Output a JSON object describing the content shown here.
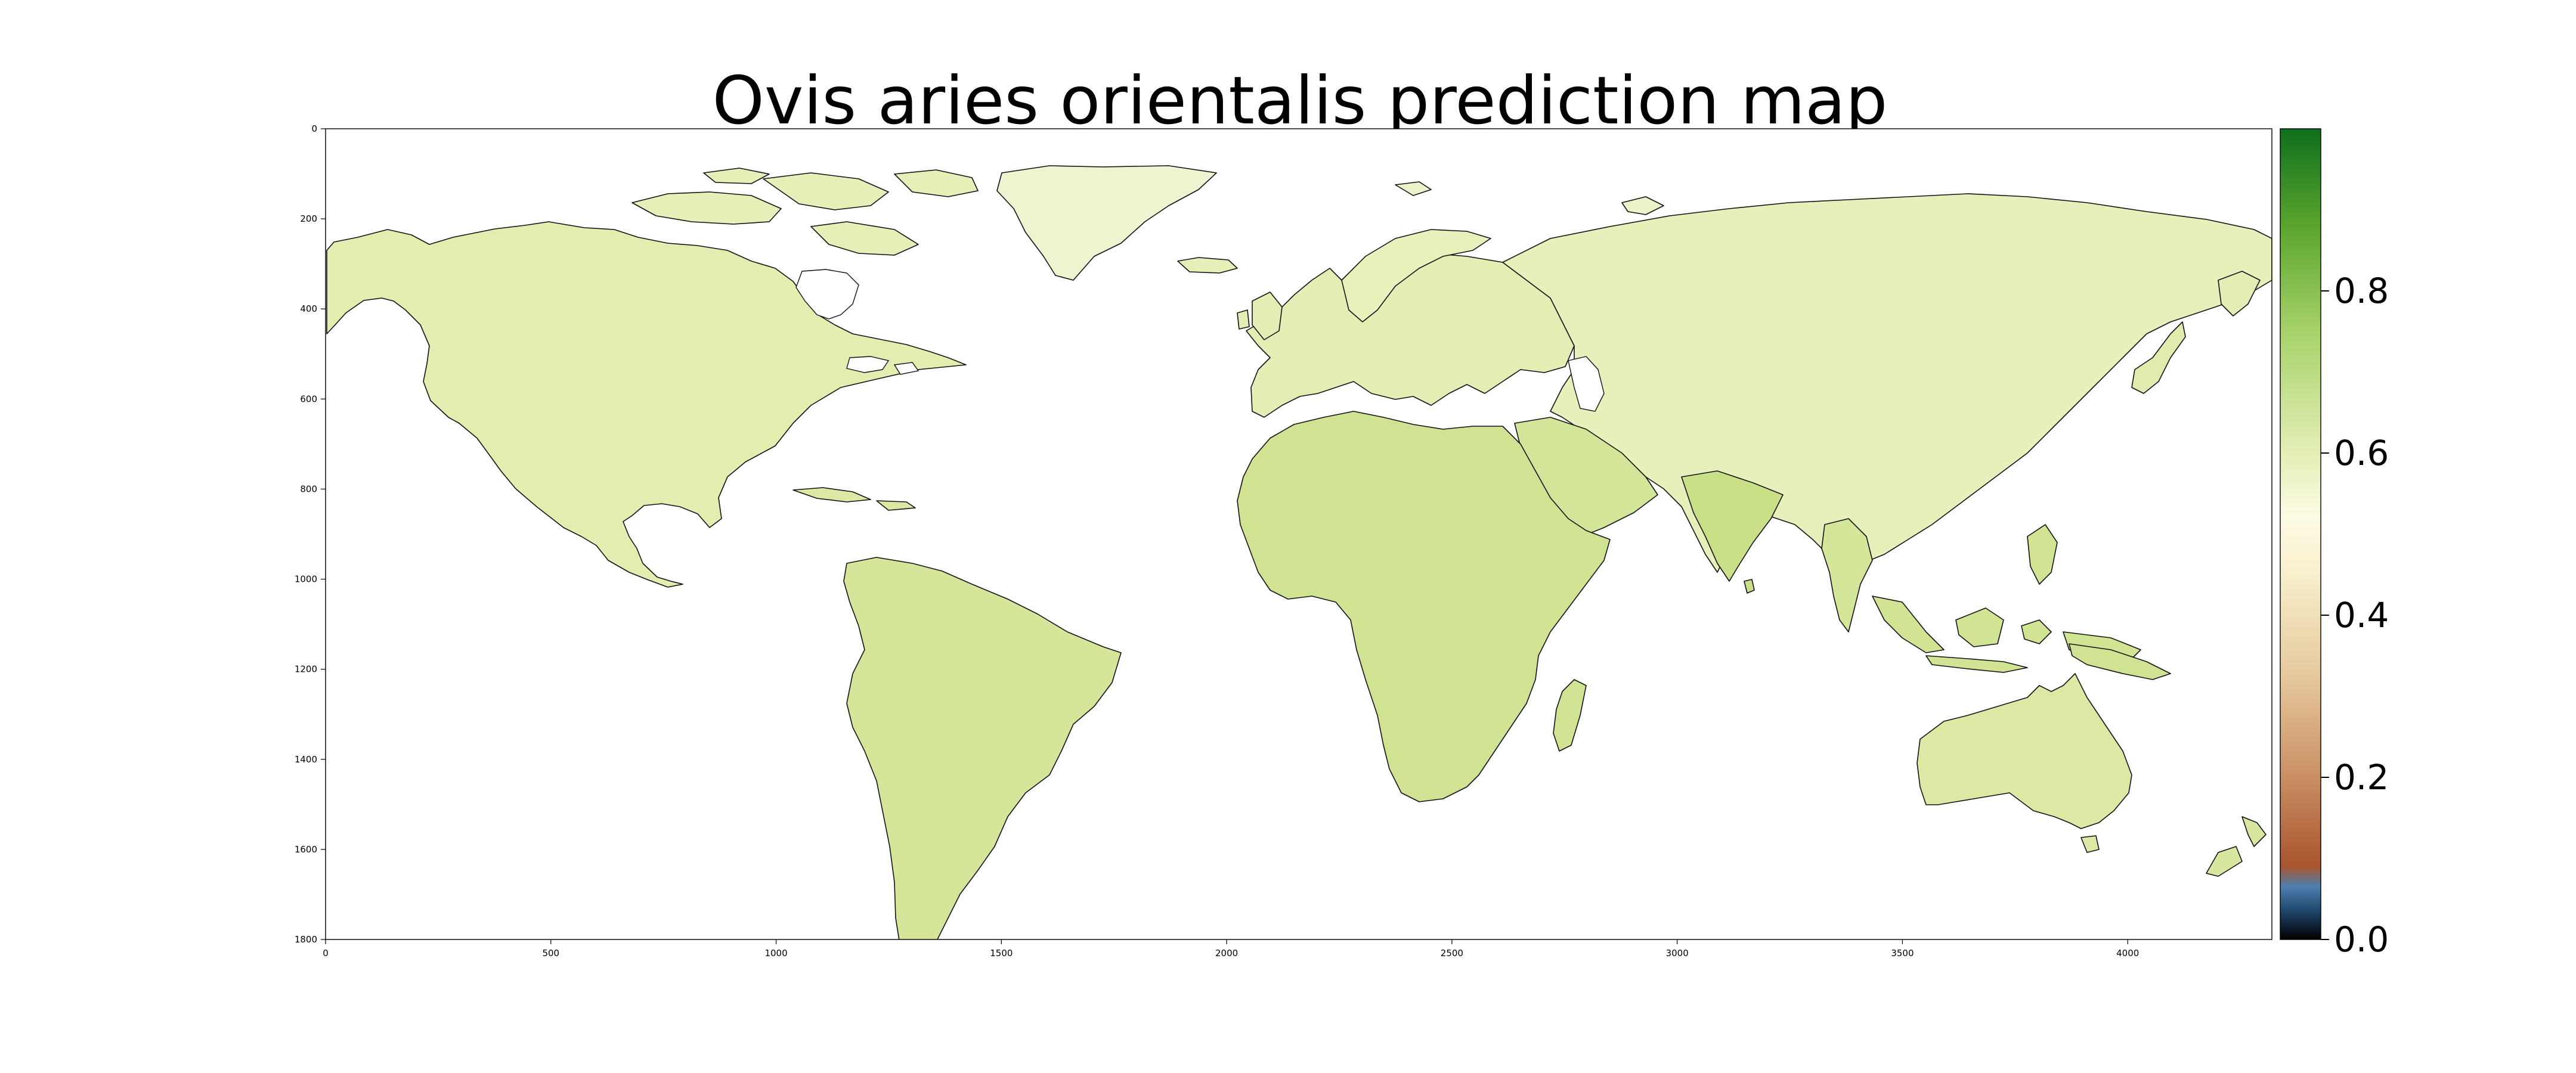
{
  "title": "Ovis aries orientalis prediction map",
  "colors": {
    "land_base": "#e6efb0",
    "land_mid": "#d7e79a",
    "land_high": "#c2dc82",
    "land_pale": "#eef2c8",
    "coast": "#111111"
  },
  "map": {
    "x_ticks": [
      "0",
      "500",
      "1000",
      "1500",
      "2000",
      "2500",
      "3000",
      "3500",
      "4000"
    ],
    "y_ticks": [
      "0",
      "200",
      "400",
      "600",
      "800",
      "1000",
      "1200",
      "1400",
      "1600",
      "1800"
    ],
    "x_range": [
      0,
      4320
    ],
    "y_range": [
      0,
      1800
    ]
  },
  "colorbar": {
    "range": [
      0,
      1
    ],
    "ticks": [
      "0.0",
      "0.2",
      "0.4",
      "0.6",
      "0.8"
    ],
    "tick_values": [
      0,
      0.2,
      0.4,
      0.6,
      0.8
    ],
    "stops": [
      {
        "v": 0.0,
        "c": "#000000"
      },
      {
        "v": 0.035,
        "c": "#20456a"
      },
      {
        "v": 0.065,
        "c": "#4d7fb0"
      },
      {
        "v": 0.09,
        "c": "#a9542e"
      },
      {
        "v": 0.2,
        "c": "#c98f63"
      },
      {
        "v": 0.32,
        "c": "#e5c79b"
      },
      {
        "v": 0.45,
        "c": "#f8efcc"
      },
      {
        "v": 0.52,
        "c": "#fdfbe5"
      },
      {
        "v": 0.6,
        "c": "#e4efb6"
      },
      {
        "v": 0.75,
        "c": "#a7d26a"
      },
      {
        "v": 0.88,
        "c": "#5aa52d"
      },
      {
        "v": 1.0,
        "c": "#0f6f1e"
      }
    ]
  }
}
